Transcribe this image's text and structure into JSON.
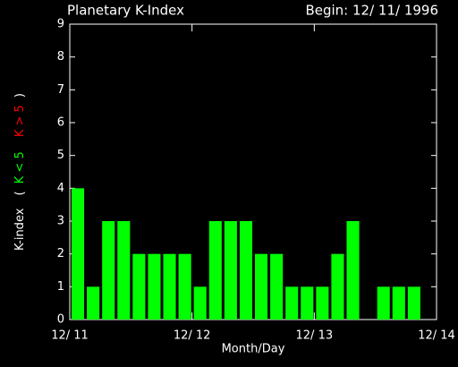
{
  "chart_data": {
    "type": "bar",
    "title": "Planetary K-Index",
    "subtitle": "Begin: 12/ 11/ 1996",
    "x_label": "Month/Day",
    "y_label": {
      "text": "K-index",
      "open": "(",
      "low": "K < 5",
      "high": "K > 5",
      "close": ")"
    },
    "values": [
      4,
      1,
      3,
      3,
      2,
      2,
      2,
      2,
      1,
      3,
      3,
      3,
      2,
      2,
      1,
      1,
      1,
      2,
      3,
      null,
      1,
      1,
      1,
      null
    ],
    "color": "#00ff00",
    "xlim": [
      0,
      24
    ],
    "xticks": [
      {
        "value": 0,
        "label": "12/ 11"
      },
      {
        "value": 8,
        "label": "12/ 12"
      },
      {
        "value": 16,
        "label": "12/ 13"
      },
      {
        "value": 24,
        "label": "12/ 14"
      }
    ],
    "ylim": [
      0,
      9
    ],
    "yticks": [
      0,
      1,
      2,
      3,
      4,
      5,
      6,
      7,
      8,
      9
    ]
  }
}
